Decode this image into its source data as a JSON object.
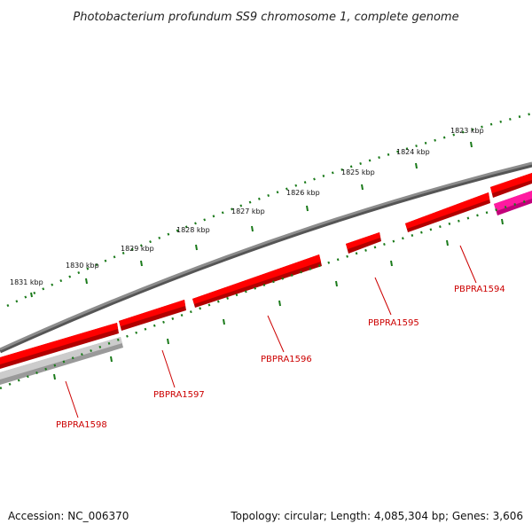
{
  "title": "Photobacterium profundum SS9 chromosome 1, complete genome",
  "footer": {
    "accession": "Accession: NC_006370",
    "summary": "Topology: circular; Length: 4,085,304 bp; Genes: 3,606"
  },
  "ticks": [
    {
      "label": "1823 kbp"
    },
    {
      "label": "1824 kbp"
    },
    {
      "label": "1825 kbp"
    },
    {
      "label": "1826 kbp"
    },
    {
      "label": "1827 kbp"
    },
    {
      "label": "1828 kbp"
    },
    {
      "label": "1829 kbp"
    },
    {
      "label": "1830 kbp"
    },
    {
      "label": "1831 kbp"
    }
  ],
  "genes": [
    {
      "label": "PBPRA1594"
    },
    {
      "label": "PBPRA1595"
    },
    {
      "label": "PBPRA1596"
    },
    {
      "label": "PBPRA1597"
    },
    {
      "label": "PBPRA1598"
    }
  ],
  "colors": {
    "backbone": "#808080",
    "gene": "#ff0000",
    "gene_dark": "#b00000",
    "magenta_gene": "#ff1aa0",
    "grey_gene": "#c8c8c8",
    "ticks": "#1a7a1a",
    "label": "#cc0000"
  }
}
